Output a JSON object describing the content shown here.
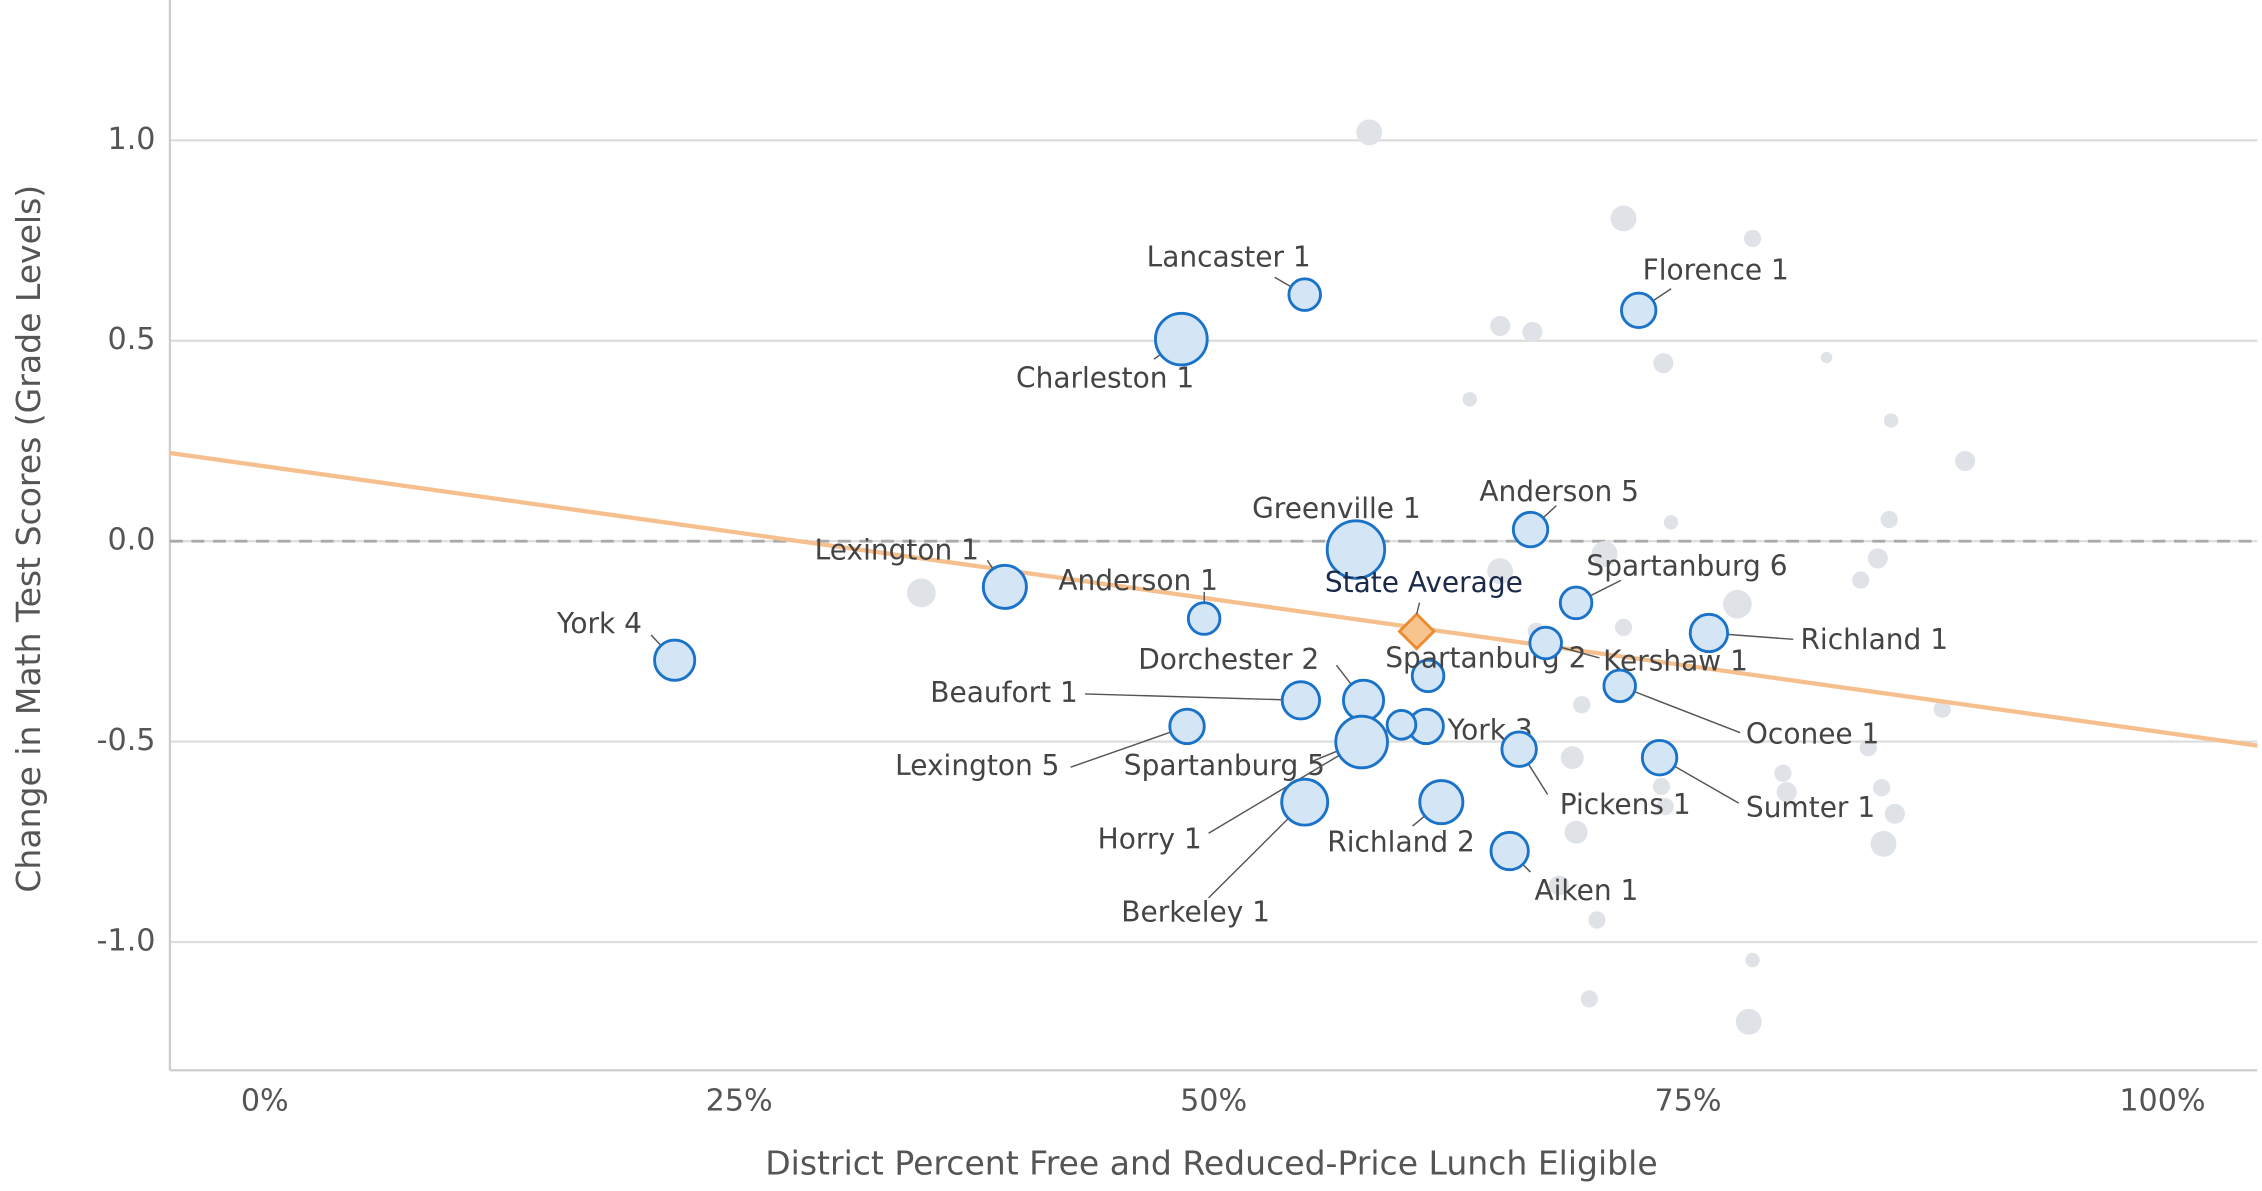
{
  "chart_data": {
    "type": "scatter",
    "xlabel": "District Percent Free and Reduced-Price Lunch Eligible",
    "ylabel": "Change in Math Test Scores (Grade Levels)",
    "xlim": [
      -5,
      105
    ],
    "ylim": [
      -1.32,
      1.35
    ],
    "xticks": [
      {
        "value": 0,
        "label": "0%"
      },
      {
        "value": 25,
        "label": "25%"
      },
      {
        "value": 50,
        "label": "50%"
      },
      {
        "value": 75,
        "label": "75%"
      },
      {
        "value": 100,
        "label": "100%"
      }
    ],
    "yticks": [
      {
        "value": 1,
        "label": "1.0"
      },
      0.5,
      {
        "value": 0,
        "label": "0.0"
      },
      -0.5,
      {
        "value": -1,
        "label": "-1.0"
      }
    ],
    "grid": true,
    "reference_y": 0,
    "series": [
      {
        "color": "#1a73c8",
        "fill": "#d4e5f5",
        "labels": [
          "Lancaster 1",
          "Charleston 1",
          "Florence 1",
          "Anderson 5",
          "Greenville 1",
          "Lexington 1",
          "Anderson 1",
          "York 4",
          "Spartanburg 6",
          "Richland 1",
          "Spartanburg 2",
          "Kershaw 1",
          "Dorchester 2",
          "Beaufort 1",
          "Oconee 1",
          "Lexington 5",
          "York 3",
          "Spartanburg 5",
          "Pickens 1",
          "Sumter 1",
          "Horry 1",
          "Richland 2",
          "Aiken 1",
          "Berkeley 1"
        ],
        "x": [
          54.8,
          48.3,
          72.4,
          66.7,
          57.5,
          39.0,
          49.5,
          21.6,
          69.1,
          76.1,
          61.3,
          67.5,
          57.9,
          54.6,
          71.4,
          48.6,
          61.2,
          59.9,
          66.1,
          73.5,
          57.8,
          62.0,
          65.6,
          54.8
        ],
        "values": [
          0.615,
          0.504,
          0.576,
          0.029,
          -0.021,
          -0.114,
          -0.193,
          -0.297,
          -0.154,
          -0.229,
          -0.336,
          -0.254,
          -0.397,
          -0.397,
          -0.361,
          -0.462,
          -0.462,
          -0.458,
          -0.519,
          -0.54,
          -0.501,
          -0.651,
          -0.773,
          -0.651
        ],
        "sizes": [
          11,
          18,
          12,
          12,
          20,
          15,
          11,
          14,
          11,
          13,
          11,
          11,
          14,
          13,
          11,
          12,
          12,
          10,
          12,
          12,
          18,
          15,
          13,
          16
        ]
      },
      {
        "fill": "#dfe3e8",
        "x": [
          58.2,
          71.6,
          78.4,
          65.1,
          66.8,
          73.7,
          82.3,
          63.5,
          85.7,
          89.6,
          74.1,
          85.6,
          85.0,
          70.6,
          65.1,
          84.1,
          34.6,
          77.6,
          71.6,
          67.0,
          69.4,
          88.4,
          68.9,
          84.5,
          80.0,
          80.2,
          73.6,
          85.2,
          85.9,
          73.8,
          69.1,
          85.3,
          68.2,
          70.2,
          78.4,
          69.8,
          78.2
        ],
        "values": [
          1.02,
          0.805,
          0.755,
          0.537,
          0.522,
          0.444,
          0.458,
          0.354,
          0.301,
          0.2,
          0.047,
          0.054,
          -0.043,
          -0.032,
          -0.075,
          -0.097,
          -0.129,
          -0.157,
          -0.215,
          -0.225,
          -0.408,
          -0.419,
          -0.54,
          -0.515,
          -0.579,
          -0.626,
          -0.612,
          -0.615,
          -0.68,
          -0.662,
          -0.726,
          -0.755,
          -0.859,
          -0.945,
          -1.045,
          -1.142,
          -1.199
        ],
        "sizes": [
          9,
          9,
          6,
          7,
          7,
          7,
          4,
          5,
          5,
          7,
          5,
          6,
          7,
          9,
          9,
          6,
          10,
          10,
          6,
          6,
          6,
          6,
          8,
          6,
          6,
          7,
          6,
          6,
          7,
          6,
          8,
          9,
          7,
          6,
          5,
          6,
          9
        ]
      }
    ],
    "state_average": {
      "label": "State Average",
      "x": 60.7,
      "value": -0.225,
      "color": "#ee8a2e",
      "fill": "#f8c48e"
    },
    "trend": {
      "color": "#f5c08e",
      "x": [
        -5,
        105
      ],
      "values": [
        0.22,
        -0.51
      ]
    }
  }
}
